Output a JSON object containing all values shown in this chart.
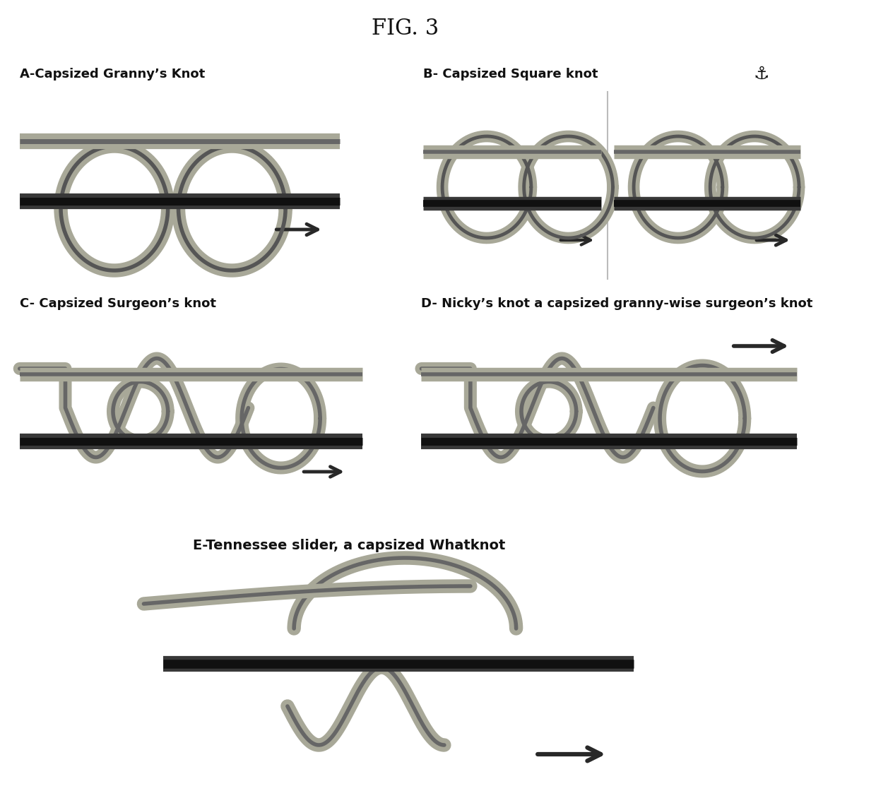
{
  "title": "FIG. 3",
  "title_fontsize": 22,
  "background_color": "#ffffff",
  "labels": {
    "A": "A-Capsized Granny’s Knot",
    "B": "B- Capsized Square knot",
    "C": "C- Capsized Surgeon’s knot",
    "D": "D- Nicky’s knot a capsized granny-wise surgeon’s knot",
    "E": "E-Tennessee slider, a capsized Whatknot"
  },
  "label_fontsize": 13,
  "rope_light": "#c8c8b8",
  "rope_dark": "#383838",
  "rope_mid": "#888878",
  "rope_gray": "#a8a898",
  "arrow_color": "#282828",
  "lw_light": 13,
  "lw_dark": 14,
  "lw_loop": 11
}
